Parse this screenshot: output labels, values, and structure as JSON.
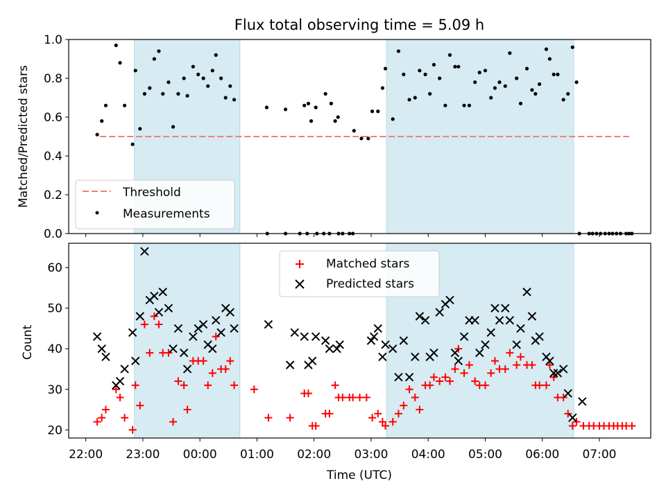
{
  "title": "Flux total observing time = 5.09 h",
  "chart_data": [
    {
      "type": "scatter",
      "ylabel": "Matched/Predicted stars",
      "ylim": [
        0.0,
        1.0
      ],
      "yticks": [
        "0.0",
        "0.2",
        "0.4",
        "0.6",
        "0.8",
        "1.0"
      ],
      "threshold": 0.5,
      "threshold_x": [
        0.25,
        9.55
      ],
      "shaded_x": [
        [
          0.85,
          2.7
        ],
        [
          5.27,
          8.55
        ]
      ],
      "legend": {
        "placement": "lower-left",
        "entries": [
          "Threshold",
          "Measurements"
        ]
      },
      "colors": {
        "threshold": "#f47c7c",
        "points": "#000000",
        "shade": "#add8e6"
      },
      "series": [
        {
          "name": "Measurements",
          "x": [
            0.2,
            0.28,
            0.35,
            0.53,
            0.6,
            0.68,
            0.82,
            0.87,
            0.95,
            1.03,
            1.12,
            1.2,
            1.28,
            1.35,
            1.45,
            1.53,
            1.62,
            1.72,
            1.78,
            1.88,
            1.97,
            2.06,
            2.14,
            2.22,
            2.28,
            2.37,
            2.45,
            2.53,
            2.6,
            3.17,
            3.5,
            3.83,
            3.9,
            3.95,
            4.03,
            4.2,
            4.3,
            4.37,
            4.42,
            4.7,
            4.83,
            4.95,
            5.02,
            5.12,
            5.2,
            5.25,
            5.38,
            5.48,
            5.57,
            5.67,
            5.77,
            5.85,
            5.95,
            6.03,
            6.1,
            6.2,
            6.3,
            6.38,
            6.47,
            6.53,
            6.63,
            6.72,
            6.82,
            6.9,
            7.0,
            7.1,
            7.17,
            7.25,
            7.35,
            7.43,
            7.55,
            7.62,
            7.73,
            7.82,
            7.88,
            7.95,
            8.07,
            8.13,
            8.2,
            8.27,
            8.37,
            8.45,
            8.53,
            8.6,
            3.18,
            3.5,
            3.75,
            3.88,
            4.05,
            4.17,
            4.27,
            4.43,
            4.5,
            4.62,
            4.68,
            8.65,
            8.82,
            8.88,
            8.95,
            9.02,
            9.1,
            9.17,
            9.23,
            9.3,
            9.37,
            9.47,
            9.52,
            9.57
          ],
          "y": [
            0.51,
            0.58,
            0.66,
            0.97,
            0.88,
            0.66,
            0.46,
            0.84,
            0.54,
            0.72,
            0.75,
            0.9,
            0.94,
            0.72,
            0.78,
            0.55,
            0.72,
            0.8,
            0.71,
            0.86,
            0.82,
            0.8,
            0.76,
            0.84,
            0.92,
            0.8,
            0.7,
            0.76,
            0.69,
            0.65,
            0.64,
            0.66,
            0.67,
            0.58,
            0.65,
            0.72,
            0.67,
            0.58,
            0.6,
            0.53,
            0.49,
            0.49,
            0.63,
            0.63,
            0.75,
            0.85,
            0.59,
            0.94,
            0.82,
            0.69,
            0.7,
            0.84,
            0.82,
            0.72,
            0.87,
            0.8,
            0.66,
            0.92,
            0.86,
            0.86,
            0.66,
            0.66,
            0.78,
            0.83,
            0.84,
            0.7,
            0.75,
            0.78,
            0.76,
            0.93,
            0.8,
            0.67,
            0.85,
            0.74,
            0.72,
            0.77,
            0.95,
            0.9,
            0.82,
            0.82,
            0.69,
            0.72,
            0.96,
            0.78,
            0.0,
            0.0,
            0.0,
            0.0,
            0.0,
            0.0,
            0.0,
            0.0,
            0.0,
            0.0,
            0.0,
            0.0,
            0.0,
            0.0,
            0.0,
            0.0,
            0.0,
            0.0,
            0.0,
            0.0,
            0.0,
            0.0,
            0.0,
            0.0
          ]
        },
        {
          "name": "Threshold",
          "value": 0.5
        }
      ]
    },
    {
      "type": "scatter",
      "xlabel": "Time (UTC)",
      "ylabel": "Count",
      "ylim": [
        18,
        66
      ],
      "yticks": [
        "20",
        "30",
        "40",
        "50",
        "60"
      ],
      "xlim": [
        -0.3,
        9.9
      ],
      "xticks": [
        "22:00",
        "23:00",
        "00:00",
        "01:00",
        "02:00",
        "03:00",
        "04:00",
        "05:00",
        "06:00",
        "07:00"
      ],
      "shaded_x": [
        [
          0.85,
          2.7
        ],
        [
          5.27,
          8.55
        ]
      ],
      "legend": {
        "placement": "upper-center",
        "entries": [
          "Matched stars",
          "Predicted stars"
        ]
      },
      "colors": {
        "matched": "#ff0000",
        "predicted": "#000000",
        "shade": "#add8e6"
      },
      "series": [
        {
          "name": "Matched stars",
          "x": [
            0.2,
            0.28,
            0.35,
            0.53,
            0.6,
            0.68,
            0.82,
            0.87,
            0.95,
            1.03,
            1.12,
            1.2,
            1.28,
            1.35,
            1.45,
            1.53,
            1.62,
            1.72,
            1.78,
            1.88,
            1.97,
            2.06,
            2.14,
            2.22,
            2.28,
            2.37,
            2.45,
            2.53,
            2.6,
            2.95,
            3.2,
            3.58,
            3.83,
            3.9,
            3.97,
            4.03,
            4.2,
            4.27,
            4.37,
            4.43,
            4.5,
            4.62,
            4.68,
            4.8,
            4.92,
            5.02,
            5.12,
            5.2,
            5.25,
            5.38,
            5.48,
            5.57,
            5.67,
            5.77,
            5.85,
            5.95,
            6.03,
            6.1,
            6.2,
            6.3,
            6.38,
            6.47,
            6.53,
            6.63,
            6.72,
            6.82,
            6.9,
            7.0,
            7.1,
            7.17,
            7.25,
            7.35,
            7.43,
            7.55,
            7.62,
            7.73,
            7.82,
            7.88,
            7.95,
            8.07,
            8.13,
            8.2,
            8.27,
            8.37,
            8.45,
            8.53,
            8.6,
            8.72,
            8.82,
            8.9,
            9.0,
            9.08,
            9.17,
            9.25,
            9.32,
            9.4,
            9.47,
            9.57
          ],
          "y": [
            22,
            23,
            25,
            30,
            28,
            23,
            20,
            31,
            26,
            46,
            39,
            48,
            46,
            39,
            39,
            22,
            32,
            31,
            25,
            37,
            37,
            37,
            31,
            34,
            43,
            35,
            35,
            37,
            31,
            30,
            23,
            23,
            29,
            29,
            21,
            21,
            24,
            24,
            31,
            28,
            28,
            28,
            28,
            28,
            28,
            23,
            24,
            22,
            21,
            22,
            24,
            26,
            30,
            28,
            25,
            31,
            31,
            33,
            32,
            33,
            32,
            35,
            40,
            34,
            36,
            32,
            31,
            31,
            34,
            37,
            35,
            35,
            39,
            36,
            38,
            36,
            36,
            31,
            31,
            31,
            36,
            33,
            28,
            28,
            24,
            21,
            22,
            21,
            21,
            21,
            21,
            21,
            21,
            21,
            21,
            21,
            21,
            21
          ]
        },
        {
          "name": "Predicted stars",
          "x": [
            0.2,
            0.28,
            0.35,
            0.53,
            0.6,
            0.68,
            0.82,
            0.87,
            0.95,
            1.03,
            1.12,
            1.2,
            1.28,
            1.35,
            1.45,
            1.53,
            1.62,
            1.72,
            1.78,
            1.88,
            1.97,
            2.06,
            2.14,
            2.22,
            2.28,
            2.37,
            2.45,
            2.53,
            2.6,
            3.2,
            3.58,
            3.66,
            3.83,
            3.9,
            3.97,
            4.03,
            4.2,
            4.27,
            4.4,
            4.45,
            5.0,
            5.05,
            5.12,
            5.2,
            5.25,
            5.38,
            5.48,
            5.57,
            5.67,
            5.77,
            5.85,
            5.95,
            6.03,
            6.1,
            6.2,
            6.3,
            6.38,
            6.47,
            6.53,
            6.63,
            6.72,
            6.82,
            6.9,
            7.0,
            7.1,
            7.17,
            7.25,
            7.35,
            7.43,
            7.55,
            7.62,
            7.73,
            7.82,
            7.88,
            7.95,
            8.07,
            8.13,
            8.2,
            8.27,
            8.37,
            8.45,
            8.53,
            8.7
          ],
          "y": [
            43,
            40,
            38,
            31,
            32,
            35,
            44,
            37,
            48,
            64,
            52,
            53,
            49,
            54,
            50,
            40,
            45,
            39,
            35,
            43,
            45,
            46,
            41,
            40,
            47,
            44,
            50,
            49,
            45,
            46,
            36,
            44,
            43,
            36,
            37,
            43,
            42,
            40,
            40,
            41,
            42,
            43,
            45,
            38,
            41,
            40,
            33,
            42,
            33,
            38,
            48,
            47,
            38,
            39,
            49,
            51,
            52,
            39,
            37,
            43,
            47,
            47,
            39,
            41,
            44,
            50,
            47,
            50,
            47,
            41,
            45,
            54,
            48,
            42,
            43,
            38,
            37,
            34,
            34,
            35,
            29,
            23,
            27
          ]
        }
      ]
    }
  ]
}
